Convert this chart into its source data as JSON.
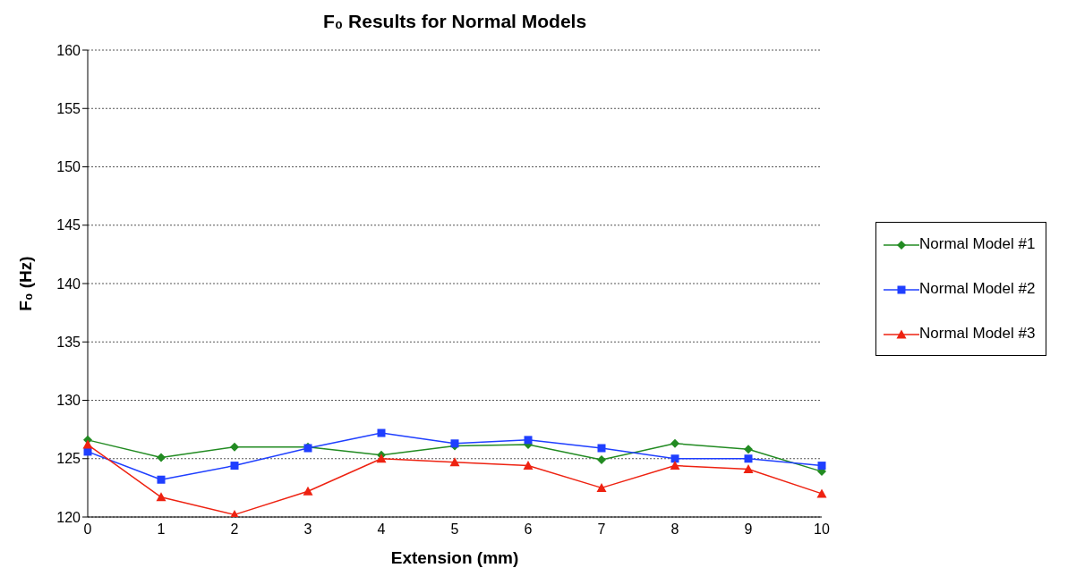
{
  "chart_data": {
    "type": "line",
    "title": "F₀ Results for Normal Models",
    "xlabel": "Extension (mm)",
    "ylabel": "F₀ (Hz)",
    "categories": [
      "0",
      "1",
      "2",
      "3",
      "4",
      "5",
      "6",
      "7",
      "8",
      "9",
      "10"
    ],
    "series": [
      {
        "name": "Normal Model #1",
        "color": "#228b22",
        "marker": "diamond",
        "values": [
          126.6,
          125.1,
          126.0,
          126.0,
          125.3,
          126.1,
          126.2,
          124.9,
          126.3,
          125.8,
          123.9
        ]
      },
      {
        "name": "Normal Model #2",
        "color": "#1f3fff",
        "marker": "square",
        "values": [
          125.6,
          123.2,
          124.4,
          125.9,
          127.2,
          126.3,
          126.6,
          125.9,
          125.0,
          125.0,
          124.4
        ]
      },
      {
        "name": "Normal Model #3",
        "color": "#ee2211",
        "marker": "triangle",
        "values": [
          126.2,
          121.7,
          120.2,
          122.2,
          125.0,
          124.7,
          124.4,
          122.5,
          124.4,
          124.1,
          122.0
        ]
      }
    ],
    "ylim": [
      120,
      160
    ],
    "yticks": [
      120,
      125,
      130,
      135,
      140,
      145,
      150,
      155,
      160
    ],
    "grid": "y",
    "legend": "right",
    "line_style": "solid"
  }
}
